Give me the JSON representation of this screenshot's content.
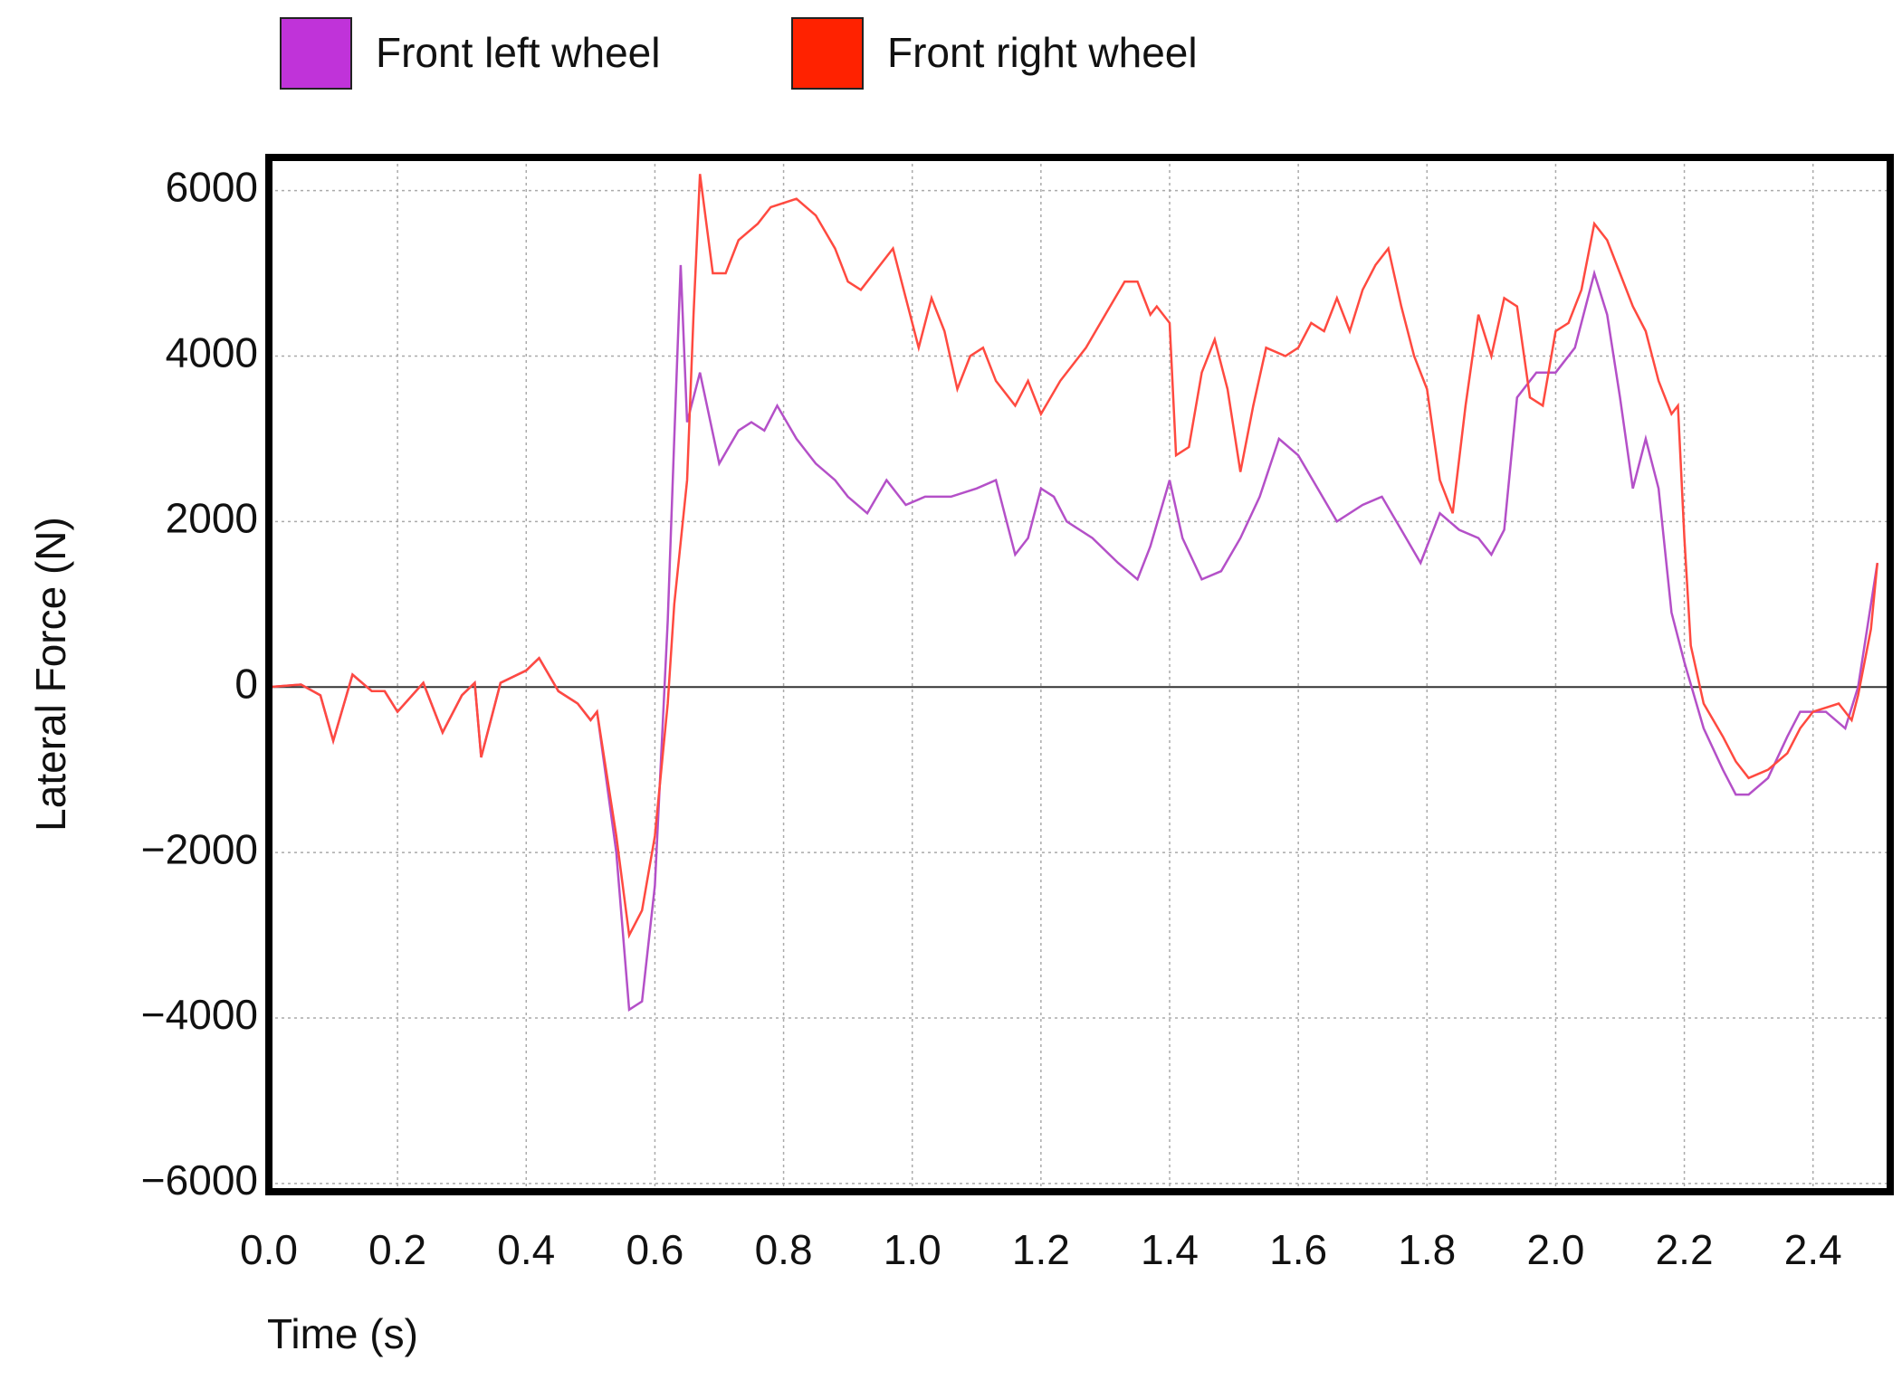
{
  "chart_data": {
    "type": "line",
    "ylabel": "Lateral Force (N)",
    "xlabel": "Time (s)",
    "xlim": [
      0,
      2.52
    ],
    "ylim": [
      -6100,
      6400
    ],
    "xticks": [
      {
        "value": 0,
        "label": "0.0"
      },
      0.2,
      0.4,
      0.6,
      0.8,
      {
        "value": 1,
        "label": "1.0"
      },
      1.2,
      1.4,
      1.6,
      1.8,
      {
        "value": 2,
        "label": "2.0"
      },
      2.2,
      2.4
    ],
    "yticks": [
      {
        "value": -6000,
        "label": "−6000"
      },
      {
        "value": -4000,
        "label": "−4000"
      },
      {
        "value": -2000,
        "label": "−2000"
      },
      0,
      2000,
      4000,
      6000
    ],
    "grid": true,
    "series": [
      {
        "name": "Front left wheel",
        "color": "#b450c8",
        "swatch": "#c033d9",
        "x": [
          0,
          0.05,
          0.08,
          0.1,
          0.13,
          0.16,
          0.18,
          0.2,
          0.24,
          0.27,
          0.3,
          0.32,
          0.33,
          0.36,
          0.4,
          0.42,
          0.45,
          0.48,
          0.5,
          0.51,
          0.54,
          0.56,
          0.58,
          0.6,
          0.62,
          0.63,
          0.64,
          0.65,
          0.67,
          0.7,
          0.73,
          0.75,
          0.77,
          0.79,
          0.82,
          0.85,
          0.88,
          0.9,
          0.93,
          0.96,
          0.99,
          1.02,
          1.06,
          1.1,
          1.13,
          1.16,
          1.18,
          1.2,
          1.22,
          1.24,
          1.28,
          1.32,
          1.35,
          1.37,
          1.4,
          1.42,
          1.45,
          1.48,
          1.51,
          1.54,
          1.57,
          1.6,
          1.63,
          1.66,
          1.7,
          1.73,
          1.76,
          1.79,
          1.82,
          1.85,
          1.88,
          1.9,
          1.92,
          1.94,
          1.97,
          2.0,
          2.03,
          2.06,
          2.08,
          2.1,
          2.12,
          2.14,
          2.16,
          2.18,
          2.2,
          2.23,
          2.26,
          2.28,
          2.3,
          2.33,
          2.36,
          2.38,
          2.42,
          2.45,
          2.47,
          2.5
        ],
        "values": [
          0,
          30,
          -100,
          -650,
          150,
          -50,
          -50,
          -300,
          50,
          -550,
          -100,
          50,
          -850,
          50,
          200,
          350,
          -50,
          -200,
          -400,
          -300,
          -2000,
          -3900,
          -3800,
          -2400,
          800,
          3000,
          5100,
          3200,
          3800,
          2700,
          3100,
          3200,
          3100,
          3400,
          3000,
          2700,
          2500,
          2300,
          2100,
          2500,
          2200,
          2300,
          2300,
          2400,
          2500,
          1600,
          1800,
          2400,
          2300,
          2000,
          1800,
          1500,
          1300,
          1700,
          2500,
          1800,
          1300,
          1400,
          1800,
          2300,
          3000,
          2800,
          2400,
          2000,
          2200,
          2300,
          1900,
          1500,
          2100,
          1900,
          1800,
          1600,
          1900,
          3500,
          3800,
          3800,
          4100,
          5000,
          4500,
          3500,
          2400,
          3000,
          2400,
          900,
          300,
          -500,
          -1000,
          -1300,
          -1300,
          -1100,
          -600,
          -300,
          -300,
          -500,
          0,
          1500
        ]
      },
      {
        "name": "Front right wheel",
        "color": "#ff4a40",
        "swatch": "#ff2200",
        "x": [
          0,
          0.05,
          0.08,
          0.1,
          0.13,
          0.16,
          0.18,
          0.2,
          0.24,
          0.27,
          0.3,
          0.32,
          0.33,
          0.36,
          0.4,
          0.42,
          0.45,
          0.48,
          0.5,
          0.51,
          0.54,
          0.56,
          0.58,
          0.6,
          0.62,
          0.63,
          0.65,
          0.66,
          0.67,
          0.69,
          0.71,
          0.73,
          0.76,
          0.78,
          0.82,
          0.85,
          0.88,
          0.9,
          0.92,
          0.95,
          0.97,
          0.99,
          1.01,
          1.03,
          1.05,
          1.07,
          1.09,
          1.11,
          1.13,
          1.16,
          1.18,
          1.2,
          1.23,
          1.27,
          1.3,
          1.33,
          1.35,
          1.37,
          1.38,
          1.4,
          1.41,
          1.43,
          1.45,
          1.47,
          1.49,
          1.51,
          1.53,
          1.55,
          1.58,
          1.6,
          1.62,
          1.64,
          1.66,
          1.68,
          1.7,
          1.72,
          1.74,
          1.76,
          1.78,
          1.8,
          1.82,
          1.84,
          1.86,
          1.88,
          1.9,
          1.92,
          1.94,
          1.96,
          1.98,
          2.0,
          2.02,
          2.04,
          2.06,
          2.08,
          2.1,
          2.12,
          2.14,
          2.16,
          2.18,
          2.19,
          2.2,
          2.21,
          2.23,
          2.26,
          2.28,
          2.3,
          2.33,
          2.36,
          2.38,
          2.4,
          2.42,
          2.44,
          2.46,
          2.47,
          2.49,
          2.5
        ],
        "values": [
          0,
          30,
          -100,
          -650,
          150,
          -50,
          -50,
          -300,
          50,
          -550,
          -100,
          50,
          -850,
          50,
          200,
          350,
          -50,
          -200,
          -400,
          -300,
          -1800,
          -3000,
          -2700,
          -1800,
          -200,
          1000,
          2500,
          4500,
          6200,
          5000,
          5000,
          5400,
          5600,
          5800,
          5900,
          5700,
          5300,
          4900,
          4800,
          5100,
          5300,
          4700,
          4100,
          4700,
          4300,
          3600,
          4000,
          4100,
          3700,
          3400,
          3700,
          3300,
          3700,
          4100,
          4500,
          4900,
          4900,
          4500,
          4600,
          4400,
          2800,
          2900,
          3800,
          4200,
          3600,
          2600,
          3400,
          4100,
          4000,
          4100,
          4400,
          4300,
          4700,
          4300,
          4800,
          5100,
          5300,
          4600,
          4000,
          3600,
          2500,
          2100,
          3400,
          4500,
          4000,
          4700,
          4600,
          3500,
          3400,
          4300,
          4400,
          4800,
          5600,
          5400,
          5000,
          4600,
          4300,
          3700,
          3300,
          3400,
          1800,
          500,
          -200,
          -600,
          -900,
          -1100,
          -1000,
          -800,
          -500,
          -300,
          -250,
          -200,
          -400,
          -100,
          700,
          1500
        ]
      }
    ]
  }
}
